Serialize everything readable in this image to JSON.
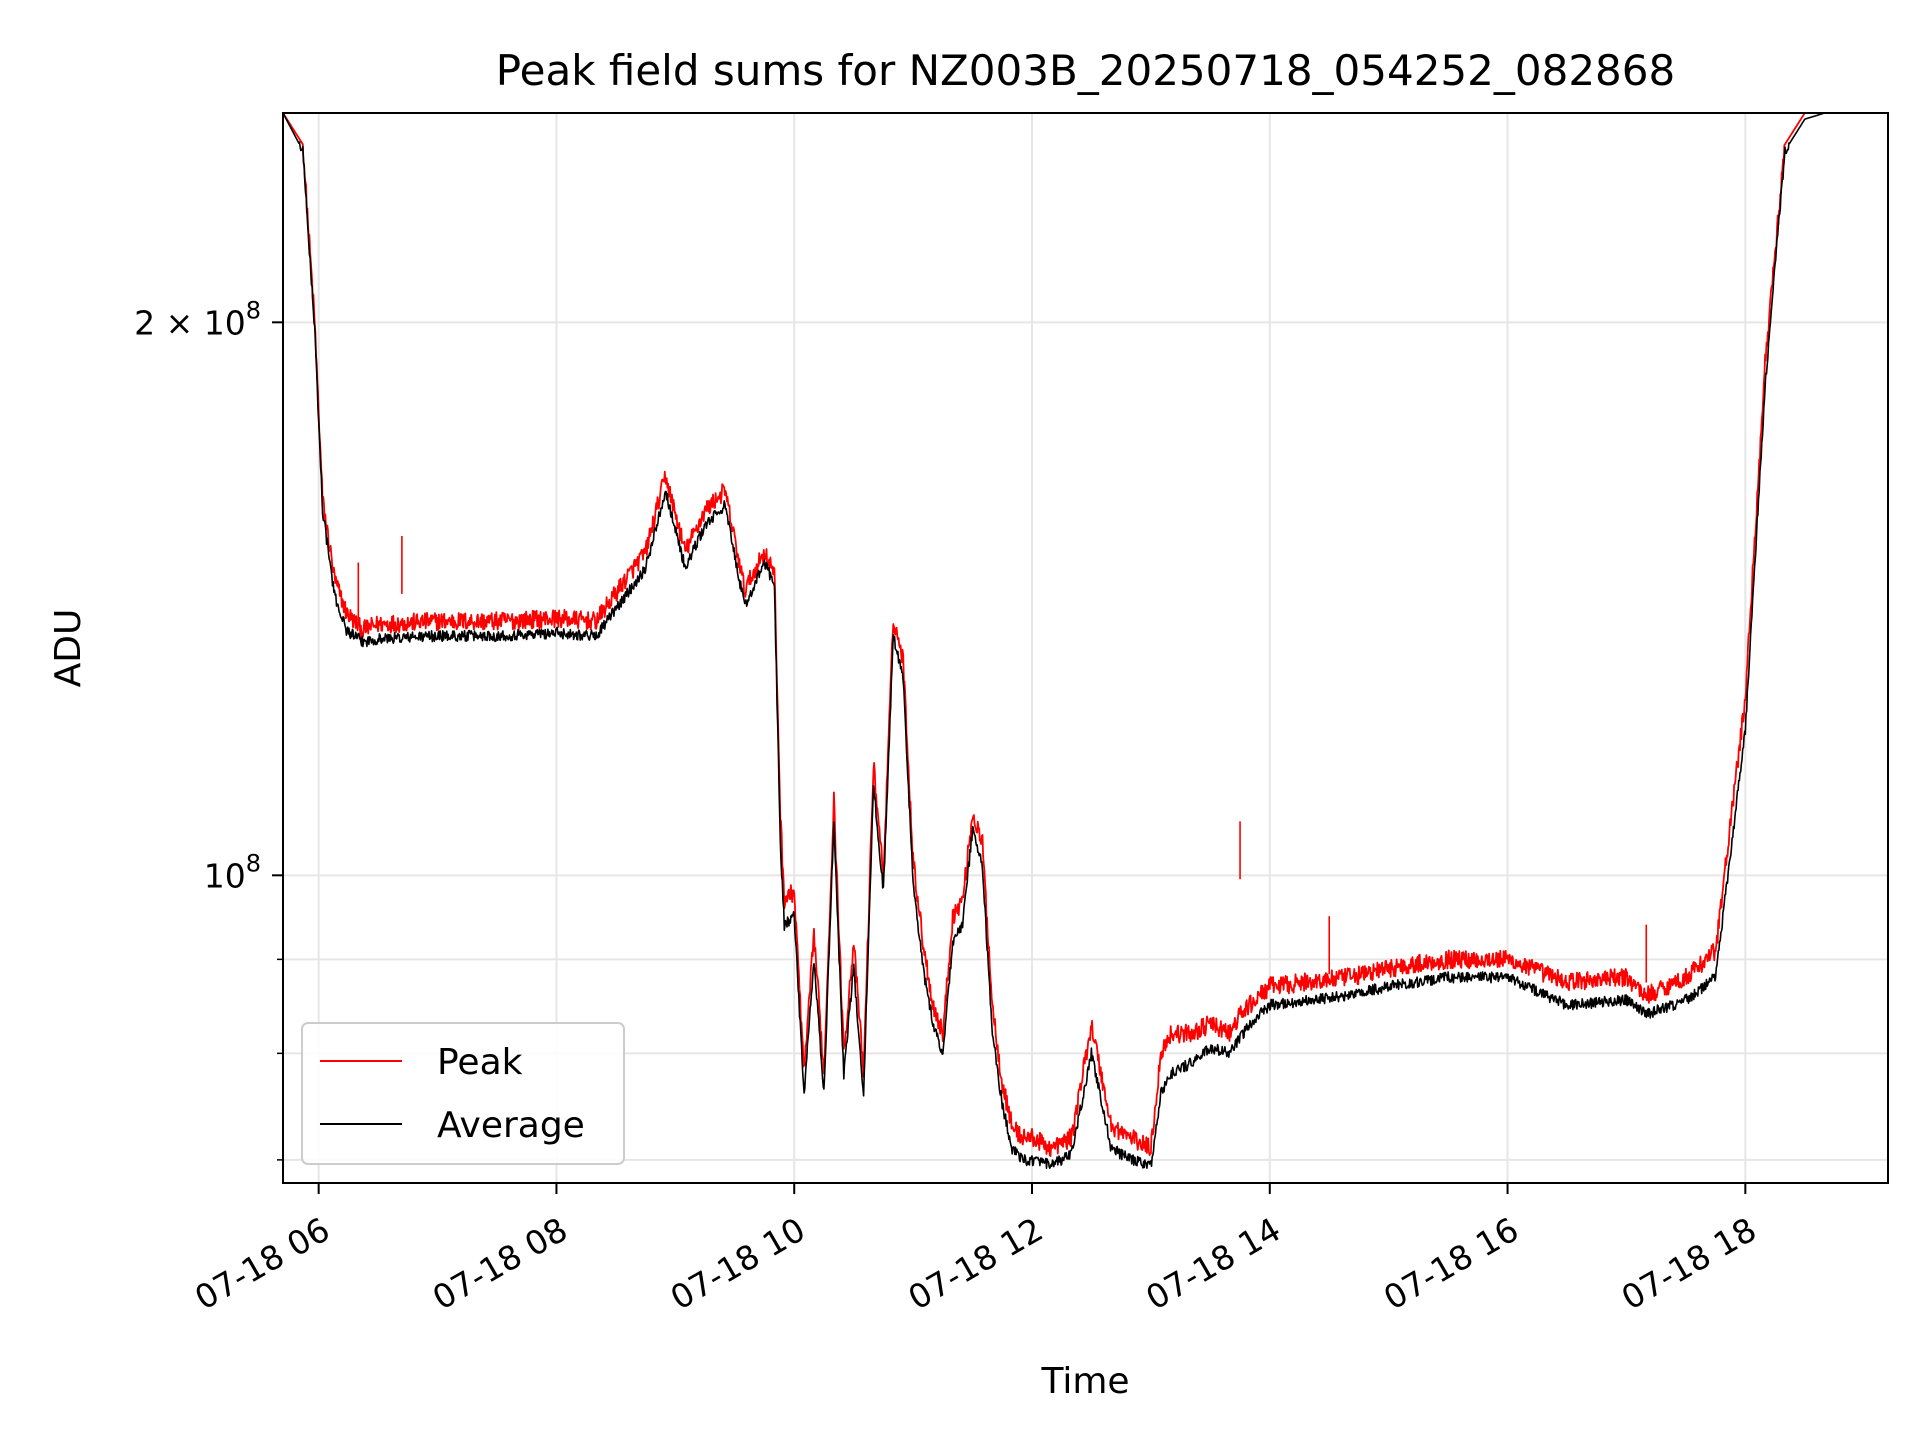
{
  "chart_data": {
    "type": "line",
    "title": "Peak field sums for NZ003B_20250718_054252_082868",
    "xlabel": "Time",
    "ylabel": "ADU",
    "yscale": "log",
    "ylim": [
      68000000,
      260000000
    ],
    "xlim": [
      "07-18 05:42",
      "07-18 19:12"
    ],
    "x_ticks": [
      {
        "t": "07-18 06:00",
        "label": "07-18 06"
      },
      {
        "t": "07-18 08:00",
        "label": "07-18 08"
      },
      {
        "t": "07-18 10:00",
        "label": "07-18 10"
      },
      {
        "t": "07-18 12:00",
        "label": "07-18 12"
      },
      {
        "t": "07-18 14:00",
        "label": "07-18 14"
      },
      {
        "t": "07-18 16:00",
        "label": "07-18 16"
      },
      {
        "t": "07-18 18:00",
        "label": "07-18 18"
      }
    ],
    "y_ticks_major": [
      {
        "v": 100000000,
        "base": "10",
        "exp": "8",
        "coef": ""
      },
      {
        "v": 200000000,
        "base": "10",
        "exp": "8",
        "coef": "2 × "
      }
    ],
    "y_ticks_minor": [
      70000000,
      80000000,
      90000000
    ],
    "grid": true,
    "legend_position": "lower-left",
    "series": [
      {
        "name": "Peak",
        "color": "#ff0000",
        "x": [
          "07-18 05:42",
          "07-18 05:52",
          "07-18 05:58",
          "07-18 06:02",
          "07-18 06:08",
          "07-18 06:14",
          "07-18 06:22",
          "07-18 06:30",
          "07-18 07:00",
          "07-18 07:30",
          "07-18 08:00",
          "07-18 08:20",
          "07-18 08:35",
          "07-18 08:45",
          "07-18 08:55",
          "07-18 09:05",
          "07-18 09:15",
          "07-18 09:25",
          "07-18 09:35",
          "07-18 09:45",
          "07-18 09:50",
          "07-18 09:53",
          "07-18 09:55",
          "07-18 10:00",
          "07-18 10:05",
          "07-18 10:10",
          "07-18 10:15",
          "07-18 10:20",
          "07-18 10:25",
          "07-18 10:30",
          "07-18 10:35",
          "07-18 10:40",
          "07-18 10:45",
          "07-18 10:50",
          "07-18 10:55",
          "07-18 11:00",
          "07-18 11:05",
          "07-18 11:10",
          "07-18 11:15",
          "07-18 11:20",
          "07-18 11:25",
          "07-18 11:30",
          "07-18 11:35",
          "07-18 11:40",
          "07-18 11:45",
          "07-18 11:50",
          "07-18 11:55",
          "07-18 12:00",
          "07-18 12:10",
          "07-18 12:20",
          "07-18 12:30",
          "07-18 12:40",
          "07-18 12:50",
          "07-18 13:00",
          "07-18 13:05",
          "07-18 13:10",
          "07-18 13:20",
          "07-18 13:30",
          "07-18 13:40",
          "07-18 13:45",
          "07-18 13:50",
          "07-18 14:00",
          "07-18 14:20",
          "07-18 14:40",
          "07-18 15:00",
          "07-18 15:30",
          "07-18 16:00",
          "07-18 16:30",
          "07-18 17:00",
          "07-18 17:10",
          "07-18 17:30",
          "07-18 17:45",
          "07-18 18:00",
          "07-18 18:10",
          "07-18 18:20",
          "07-18 18:30",
          "07-18 18:40",
          "07-18 18:47",
          "07-18 18:52",
          "07-18 18:57",
          "07-18 19:02",
          "07-18 19:12"
        ],
        "y": [
          260000000,
          250000000,
          200000000,
          160000000,
          145000000,
          139000000,
          136000000,
          137000000,
          137500000,
          137500000,
          138000000,
          137500000,
          145000000,
          150000000,
          165000000,
          150000000,
          158000000,
          162000000,
          143000000,
          150000000,
          146000000,
          108000000,
          97000000,
          98000000,
          78000000,
          93000000,
          78000000,
          110000000,
          80000000,
          92000000,
          78000000,
          115000000,
          100000000,
          138000000,
          131000000,
          102000000,
          92000000,
          85000000,
          82000000,
          95000000,
          97000000,
          108000000,
          104000000,
          85000000,
          77000000,
          73000000,
          72000000,
          72000000,
          71000000,
          72000000,
          83000000,
          73000000,
          72000000,
          71000000,
          80000000,
          82000000,
          82000000,
          83000000,
          82000000,
          84000000,
          85000000,
          87000000,
          87500000,
          88000000,
          89000000,
          90000000,
          90000000,
          87500000,
          88000000,
          86000000,
          88000000,
          91000000,
          125000000,
          190000000,
          250000000,
          260000000,
          260000000,
          260000000,
          260000000,
          260000000,
          260000000,
          260000000
        ],
        "note_peak_spikes": [
          {
            "t": "07-18 06:20",
            "v": 148000000
          },
          {
            "t": "07-18 06:42",
            "v": 153000000
          },
          {
            "t": "07-18 13:45",
            "v": 107000000
          },
          {
            "t": "07-18 14:30",
            "v": 95000000
          },
          {
            "t": "07-18 17:10",
            "v": 94000000
          }
        ]
      },
      {
        "name": "Average",
        "color": "#000000",
        "x": [
          "07-18 05:42",
          "07-18 05:52",
          "07-18 05:58",
          "07-18 06:02",
          "07-18 06:08",
          "07-18 06:14",
          "07-18 06:22",
          "07-18 06:30",
          "07-18 07:00",
          "07-18 07:30",
          "07-18 08:00",
          "07-18 08:20",
          "07-18 08:35",
          "07-18 08:45",
          "07-18 08:55",
          "07-18 09:05",
          "07-18 09:15",
          "07-18 09:25",
          "07-18 09:35",
          "07-18 09:45",
          "07-18 09:50",
          "07-18 09:53",
          "07-18 09:55",
          "07-18 10:00",
          "07-18 10:05",
          "07-18 10:10",
          "07-18 10:15",
          "07-18 10:20",
          "07-18 10:25",
          "07-18 10:30",
          "07-18 10:35",
          "07-18 10:40",
          "07-18 10:45",
          "07-18 10:50",
          "07-18 10:55",
          "07-18 11:00",
          "07-18 11:05",
          "07-18 11:10",
          "07-18 11:15",
          "07-18 11:20",
          "07-18 11:25",
          "07-18 11:30",
          "07-18 11:35",
          "07-18 11:40",
          "07-18 11:45",
          "07-18 11:50",
          "07-18 11:55",
          "07-18 12:00",
          "07-18 12:10",
          "07-18 12:20",
          "07-18 12:30",
          "07-18 12:40",
          "07-18 12:50",
          "07-18 13:00",
          "07-18 13:05",
          "07-18 13:10",
          "07-18 13:20",
          "07-18 13:30",
          "07-18 13:40",
          "07-18 13:45",
          "07-18 13:50",
          "07-18 14:00",
          "07-18 14:20",
          "07-18 14:40",
          "07-18 15:00",
          "07-18 15:30",
          "07-18 16:00",
          "07-18 16:30",
          "07-18 17:00",
          "07-18 17:10",
          "07-18 17:30",
          "07-18 17:45",
          "07-18 18:00",
          "07-18 18:10",
          "07-18 18:20",
          "07-18 18:30",
          "07-18 18:40",
          "07-18 18:47",
          "07-18 18:52",
          "07-18 18:57",
          "07-18 19:02",
          "07-18 19:12"
        ],
        "y": [
          260000000,
          248000000,
          198000000,
          158000000,
          142000000,
          136000000,
          134000000,
          134500000,
          135000000,
          135000000,
          135500000,
          135000000,
          142000000,
          147000000,
          162000000,
          147000000,
          155000000,
          159000000,
          140000000,
          148000000,
          144000000,
          104000000,
          94000000,
          95000000,
          76000000,
          90000000,
          76000000,
          107000000,
          78000000,
          89000000,
          76000000,
          112000000,
          98000000,
          135000000,
          128000000,
          99000000,
          89000000,
          83000000,
          80000000,
          92000000,
          94000000,
          106000000,
          101000000,
          82000000,
          75000000,
          71000000,
          70000000,
          70000000,
          69500000,
          70500000,
          80000000,
          71000000,
          70000000,
          69500000,
          76000000,
          78000000,
          79000000,
          80500000,
          80000000,
          81500000,
          83000000,
          85000000,
          85500000,
          86000000,
          87000000,
          88000000,
          88000000,
          85000000,
          85500000,
          84000000,
          85500000,
          88000000,
          120000000,
          185000000,
          248000000,
          258000000,
          260000000,
          260000000,
          260000000,
          260000000,
          260000000,
          260000000
        ]
      }
    ]
  }
}
